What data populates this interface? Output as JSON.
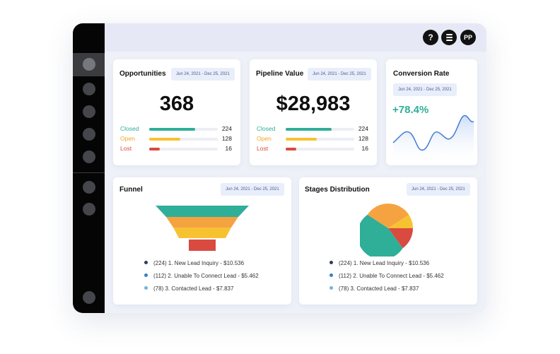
{
  "header": {
    "help_icon": "question-icon",
    "menu_icon": "hamburger-menu-icon",
    "avatar_initials": "PP"
  },
  "sidebar": {
    "items": [
      "nav-item-1",
      "nav-item-2",
      "nav-item-3",
      "nav-item-4",
      "nav-item-5",
      "nav-item-6",
      "nav-item-7",
      "nav-item-8"
    ],
    "active_index": 0
  },
  "colors": {
    "teal": "#2fae98",
    "orange": "#f5a341",
    "yellow": "#f7c232",
    "red": "#d94a40",
    "closed_text": "#2fae98",
    "open_text": "#f0a524",
    "lost_text": "#d94a40",
    "legend_dark": "#2d3e5c",
    "legend_mid": "#3b7fc4",
    "legend_light": "#6fb6d9"
  },
  "opportunities": {
    "title": "Opportunities",
    "date_range": "Jun 24, 2021 - Dec 25, 2021",
    "total": "368",
    "rows": [
      {
        "label": "Closed",
        "value": "224",
        "fraction": 0.67
      },
      {
        "label": "Open",
        "value": "128",
        "fraction": 0.45
      },
      {
        "label": "Lost",
        "value": "16",
        "fraction": 0.15
      }
    ]
  },
  "pipeline": {
    "title": "Pipeline Value",
    "date_range": "Jun 24, 2021 - Dec 25, 2021",
    "total": "$28,983",
    "rows": [
      {
        "label": "Closed",
        "value": "224",
        "fraction": 0.67
      },
      {
        "label": "Open",
        "value": "128",
        "fraction": 0.45
      },
      {
        "label": "Lost",
        "value": "16",
        "fraction": 0.15
      }
    ]
  },
  "conversion": {
    "title": "Conversion Rate",
    "date_range": "Jun 24, 2021 - Dec 25, 2021",
    "rate": "+78.4%"
  },
  "funnel": {
    "title": "Funnel",
    "date_range": "Jun 24, 2021 - Dec 25, 2021",
    "legend": [
      "(224) 1. New Lead Inquiry - $10.536",
      "(112) 2. Unable To Connect Lead - $5.462",
      "(78) 3. Contacted Lead - $7.837"
    ]
  },
  "stages": {
    "title": "Stages Distribution",
    "date_range": "Jun 24, 2021 - Dec 25, 2021",
    "legend": [
      "(224) 1. New Lead Inquiry - $10.536",
      "(112) 2. Unable To Connect Lead - $5.462",
      "(78) 3. Contacted Lead - $7.837"
    ]
  }
}
